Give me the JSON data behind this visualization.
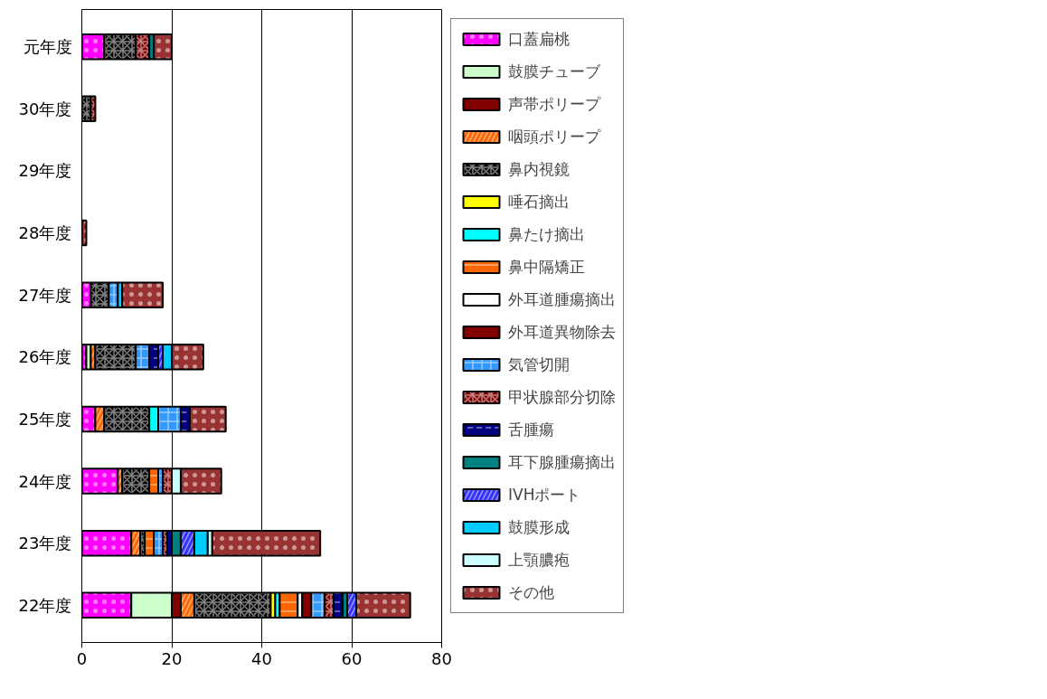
{
  "chart_data": {
    "type": "bar",
    "orientation": "horizontal",
    "stacked": true,
    "categories": [
      "元年度",
      "30年度",
      "29年度",
      "28年度",
      "27年度",
      "26年度",
      "25年度",
      "24年度",
      "23年度",
      "22年度"
    ],
    "xlim": [
      0,
      80
    ],
    "xticks": [
      0,
      20,
      40,
      60,
      80
    ],
    "grid": "x",
    "legend": "right",
    "series": [
      {
        "name": "口蓋扁桃",
        "color": "#ff00ff",
        "values": [
          5,
          null,
          null,
          null,
          2,
          1,
          3,
          8,
          11,
          11
        ]
      },
      {
        "name": "鼓膜チューブ",
        "color": "#ccffcc",
        "values": [
          null,
          null,
          null,
          null,
          null,
          1,
          null,
          null,
          null,
          9
        ]
      },
      {
        "name": "声帯ポリープ",
        "color": "#800000",
        "values": [
          null,
          null,
          null,
          null,
          null,
          null,
          null,
          null,
          null,
          2
        ]
      },
      {
        "name": "咽頭ポリープ",
        "color": "#ff6600",
        "values": [
          null,
          null,
          null,
          null,
          null,
          1,
          2,
          1,
          2,
          3
        ]
      },
      {
        "name": "鼻内視鏡",
        "color": "#000000",
        "values": [
          7,
          2,
          null,
          null,
          4,
          9,
          10,
          6,
          1,
          17
        ]
      },
      {
        "name": "唾石摘出",
        "color": "#ffff00",
        "values": [
          null,
          null,
          null,
          null,
          null,
          null,
          null,
          null,
          null,
          1
        ]
      },
      {
        "name": "鼻たけ摘出",
        "color": "#00ffff",
        "values": [
          null,
          null,
          null,
          null,
          null,
          null,
          2,
          null,
          null,
          1
        ]
      },
      {
        "name": "鼻中隔矯正",
        "color": "#ff6600",
        "values": [
          null,
          null,
          null,
          null,
          null,
          null,
          null,
          2,
          2,
          4
        ]
      },
      {
        "name": "外耳道腫瘍摘出",
        "color": "#ffffff",
        "values": [
          null,
          null,
          null,
          null,
          null,
          null,
          null,
          null,
          null,
          1
        ]
      },
      {
        "name": "外耳道異物除去",
        "color": "#800000",
        "values": [
          null,
          null,
          null,
          null,
          null,
          null,
          null,
          null,
          null,
          2
        ]
      },
      {
        "name": "気管切開",
        "color": "#3399ff",
        "values": [
          null,
          null,
          null,
          null,
          2,
          3,
          5,
          1,
          2,
          3
        ]
      },
      {
        "name": "甲状腺部分切除",
        "color": "#800000",
        "values": [
          3,
          1,
          null,
          null,
          null,
          null,
          null,
          2,
          1,
          2
        ]
      },
      {
        "name": "舌腫瘍",
        "color": "#000080",
        "values": [
          null,
          null,
          null,
          null,
          null,
          2,
          2,
          null,
          1,
          2
        ]
      },
      {
        "name": "耳下腺腫瘍摘出",
        "color": "#008080",
        "values": [
          1,
          null,
          null,
          null,
          null,
          null,
          null,
          null,
          2,
          1
        ]
      },
      {
        "name": "IVHポート",
        "color": "#3333ff",
        "values": [
          null,
          null,
          null,
          null,
          null,
          1,
          null,
          null,
          3,
          2
        ]
      },
      {
        "name": "鼓膜形成",
        "color": "#00ccff",
        "values": [
          null,
          null,
          null,
          null,
          1,
          2,
          null,
          null,
          3,
          null
        ]
      },
      {
        "name": "上顎膿疱",
        "color": "#ccffff",
        "values": [
          null,
          null,
          null,
          null,
          null,
          null,
          null,
          2,
          1,
          null
        ]
      },
      {
        "name": "その他",
        "color": "#993333",
        "values": [
          4,
          null,
          null,
          1,
          9,
          7,
          8,
          9,
          24,
          12
        ]
      }
    ]
  }
}
